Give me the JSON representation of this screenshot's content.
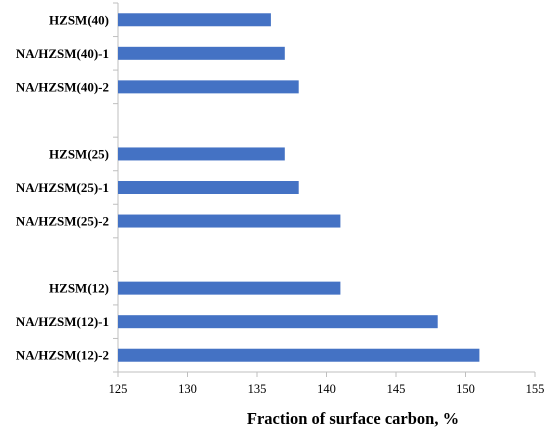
{
  "chart_data": {
    "type": "bar",
    "orientation": "horizontal",
    "title": "",
    "xlabel": "Fraction of surface carbon, %",
    "ylabel": "",
    "xlim": [
      125,
      155
    ],
    "xticks": [
      125,
      130,
      135,
      140,
      145,
      150,
      155
    ],
    "grid": false,
    "legend": "none",
    "bar_color": "#4472C4",
    "categories": [
      "HZSM(40)",
      "NA/HZSM(40)-1",
      "NA/HZSM(40)-2",
      "",
      "HZSM(25)",
      "NA/HZSM(25)-1",
      "NA/HZSM(25)-2",
      "",
      "HZSM(12)",
      "NA/HZSM(12)-1",
      "NA/HZSM(12)-2"
    ],
    "values": [
      136,
      137,
      138,
      null,
      137,
      138,
      141,
      null,
      141,
      148,
      151
    ]
  }
}
